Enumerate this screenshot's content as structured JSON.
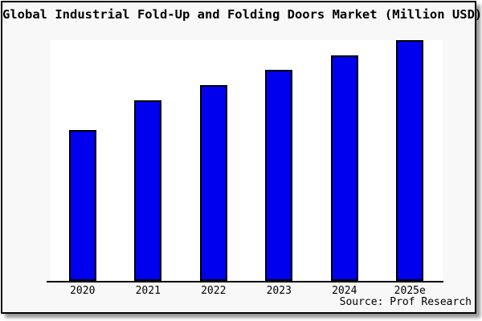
{
  "chart_data": {
    "type": "bar",
    "title": "Global Industrial Fold-Up and Folding Doors Market (Million USD)",
    "categories": [
      "2020",
      "2021",
      "2022",
      "2023",
      "2024",
      "2025e"
    ],
    "values": [
      188,
      225,
      244,
      263,
      281,
      300
    ],
    "note": "No y-axis, tick values, gridlines or data labels are shown in the chart; values are relative bar heights measured in pixels.",
    "source": "Source: Prof Research",
    "xlabel": "",
    "ylabel": "",
    "grid": false,
    "legend": false,
    "colors": {
      "bar_fill": "#0000ee",
      "bar_border": "#000000",
      "card_background": "#f8f8f8",
      "plot_background": "#ffffff",
      "axis": "#000000",
      "title_text": "#000000"
    }
  }
}
